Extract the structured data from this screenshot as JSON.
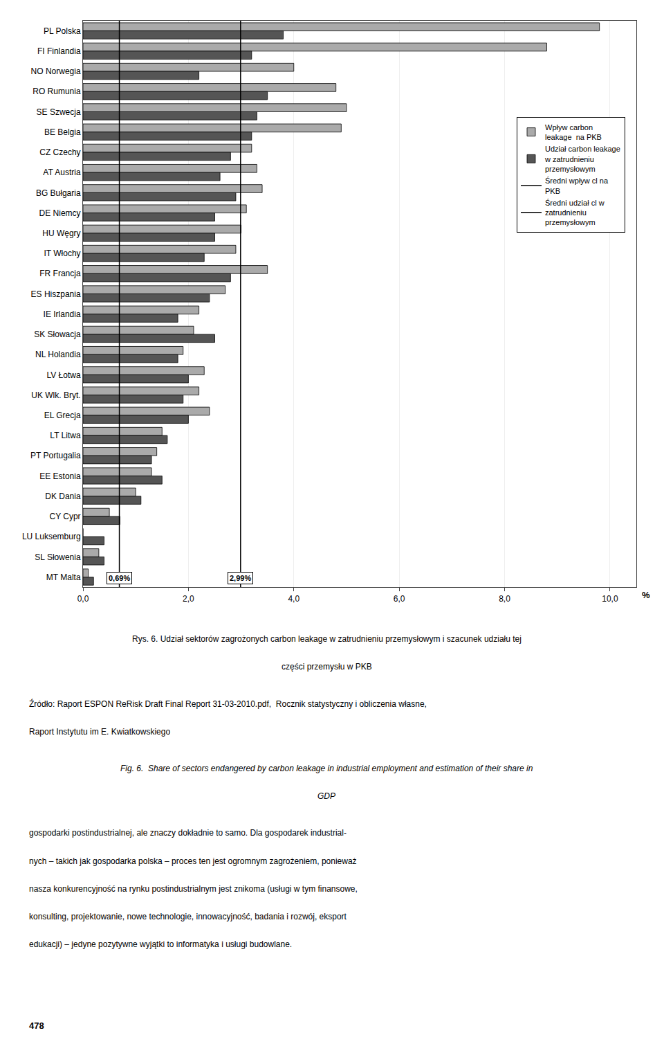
{
  "chart_data": {
    "type": "bar",
    "orientation": "horizontal",
    "categories": [
      "PL Polska",
      "FI Finlandia",
      "NO Norwegia",
      "RO Rumunia",
      "SE Szwecja",
      "BE Belgia",
      "CZ Czechy",
      "AT Austria",
      "BG Bułgaria",
      "DE Niemcy",
      "HU Węgry",
      "IT Włochy",
      "FR Francja",
      "ES Hiszpania",
      "IE Irlandia",
      "SK Słowacja",
      "NL Holandia",
      "LV Łotwa",
      "UK Wlk. Bryt.",
      "EL Grecja",
      "LT Litwa",
      "PT Portugalia",
      "EE Estonia",
      "DK Dania",
      "CY Cypr",
      "LU Luksemburg",
      "SL Słowenia",
      "MT Malta"
    ],
    "series": [
      {
        "name": "Wpływ carbon\nleakage  na PKB",
        "color": "#aaaaaa",
        "values": [
          9.8,
          8.8,
          4.0,
          4.8,
          5.0,
          4.9,
          3.2,
          3.3,
          3.4,
          3.1,
          3.0,
          2.9,
          3.5,
          2.7,
          2.2,
          2.1,
          1.9,
          2.3,
          2.2,
          2.4,
          1.5,
          1.4,
          1.3,
          1.0,
          0.5,
          0.0,
          0.3,
          0.1
        ]
      },
      {
        "name": "Udział carbon leakage\nw zatrudnieniu\nprzemysłowym",
        "color": "#555555",
        "values": [
          3.8,
          3.2,
          2.2,
          3.5,
          3.3,
          3.2,
          2.8,
          2.6,
          2.9,
          2.5,
          2.5,
          2.3,
          2.8,
          2.4,
          1.8,
          2.5,
          1.8,
          2.0,
          1.9,
          2.0,
          1.6,
          1.3,
          1.5,
          1.1,
          0.7,
          0.4,
          0.4,
          0.2
        ]
      }
    ],
    "reference_lines": [
      {
        "name": "Średni wpływ cl na\nPKB",
        "value": 2.99,
        "label": "2,99%",
        "color": "#000000"
      },
      {
        "name": "Średni udział cl w\nzatrudnieniu\nprzemysłowym",
        "value": 0.69,
        "label": "0,69%",
        "color": "#000000"
      }
    ],
    "xlabel": "%",
    "xlim": [
      0,
      10.5
    ],
    "xticks": [
      {
        "value": 0.0,
        "label": "0,0"
      },
      {
        "value": 2.0,
        "label": "2,0"
      },
      {
        "value": 4.0,
        "label": "4,0"
      },
      {
        "value": 6.0,
        "label": "6,0"
      },
      {
        "value": 8.0,
        "label": "8,0"
      },
      {
        "value": 10.0,
        "label": "10,0"
      }
    ],
    "grid": true,
    "legend": "upper right",
    "caption": [
      "Rys. 6. Udział sektorów zagrożonych carbon leakage w zatrudnieniu przemysłowym i szacunek udziału tej",
      "części przemysłu w PKB"
    ],
    "source": [
      "Źródło: Raport ESPON ReRisk Draft Final Report 31-03-2010.pdf,  Rocznik statystyczny i obliczenia własne,",
      "Raport Instytutu im E. Kwiatkowskiego"
    ],
    "caption_en": [
      "Fig. 6.  Share of sectors endangered by carbon leakage in industrial employment and estimation of their share in",
      "GDP"
    ],
    "text": [
      "gospodarki postindustrialnej, ale znaczy dokładnie to samo. Dla gospodarek industrial-",
      "nych – takich jak gospodarka polska – proces ten jest ogromnym zagrożeniem, ponieważ",
      "nasza konkurencyjność na rynku postindustrialnym jest znikoma (usługi w tym finansowe,",
      "konsulting, projektowanie, nowe technologie, innowacyjność, badania i rozwój, eksport",
      "edukacji) – jedyne pozytywne wyjątki to informatyka i usługi budowlane."
    ],
    "page_number": "478"
  }
}
